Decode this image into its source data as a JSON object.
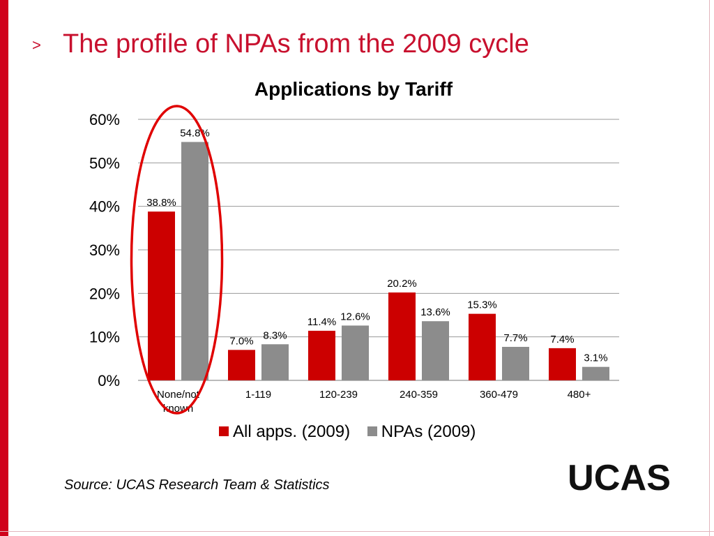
{
  "slide": {
    "bullet": ">",
    "title": "The profile of NPAs from the 2009 cycle",
    "source": "Source: UCAS Research Team & Statistics",
    "logo_text": "UCAS",
    "title_color": "#c8102e"
  },
  "chart_data": {
    "type": "bar",
    "title": "Applications by Tariff",
    "xlabel": "",
    "ylabel": "",
    "ylim": [
      0,
      60
    ],
    "yticks": [
      "0%",
      "10%",
      "20%",
      "30%",
      "40%",
      "50%",
      "60%"
    ],
    "grid": true,
    "legend_position": "bottom",
    "categories": [
      "None/not known",
      "1-119",
      "120-239",
      "240-359",
      "360-479",
      "480+"
    ],
    "series": [
      {
        "name": "All apps. (2009)",
        "color": "#cc0000",
        "values": [
          38.8,
          7.0,
          11.4,
          20.2,
          15.3,
          7.4
        ],
        "labels": [
          "38.8%",
          "7.0%",
          "11.4%",
          "20.2%",
          "15.3%",
          "7.4%"
        ]
      },
      {
        "name": "NPAs (2009)",
        "color": "#8c8c8c",
        "values": [
          54.8,
          8.3,
          12.6,
          13.6,
          7.7,
          3.1
        ],
        "labels": [
          "54.8%",
          "8.3%",
          "12.6%",
          "13.6%",
          "7.7%",
          "3.1%"
        ]
      }
    ],
    "annotation": {
      "type": "ellipse",
      "target_category": "None/not known",
      "color": "#e00000"
    }
  }
}
